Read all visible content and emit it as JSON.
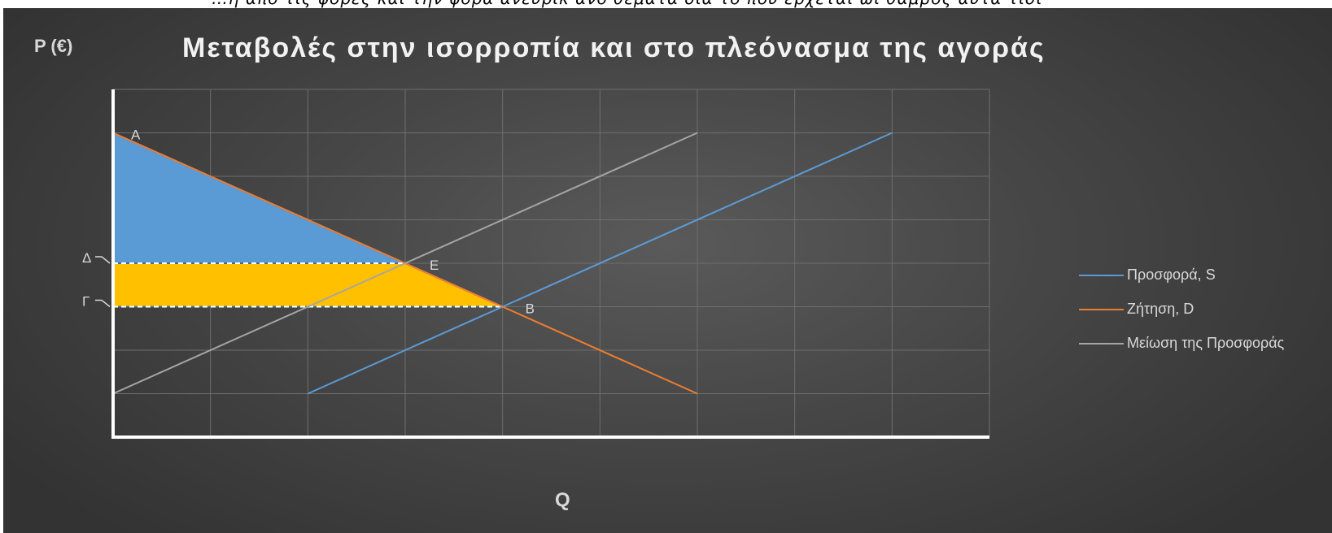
{
  "top_strip_text": "…η απο τις φορες και την φορα ανευρικ ανο θεματα δια το που ερχεται ωι θαμβος αυτα τισι",
  "chart_data": {
    "type": "line",
    "title": "Μεταβολές στην ισορροπία και στο πλεόνασμα της αγοράς",
    "ylabel": "P (€)",
    "xlabel": "Q",
    "xlim": [
      0,
      9
    ],
    "ylim": [
      0,
      8
    ],
    "grid": true,
    "legend_position": "right",
    "series": [
      {
        "name": "Προσφορά, S",
        "color": "#5b9bd5",
        "x": [
          2,
          8
        ],
        "y": [
          1,
          7
        ]
      },
      {
        "name": "Ζήτηση, D",
        "color": "#ed7d31",
        "x": [
          0,
          6
        ],
        "y": [
          7,
          1
        ]
      },
      {
        "name": "Μείωση της Προσφοράς",
        "color": "#a5a5a5",
        "x": [
          0,
          6
        ],
        "y": [
          1,
          7
        ]
      }
    ],
    "shaded_areas": [
      {
        "color": "#5b9bd5",
        "points": [
          [
            0,
            7
          ],
          [
            0,
            4
          ],
          [
            3,
            4
          ]
        ]
      },
      {
        "color": "#ffc000",
        "points": [
          [
            0,
            4
          ],
          [
            3,
            4
          ],
          [
            4,
            3
          ],
          [
            0,
            3
          ]
        ]
      }
    ],
    "guide_lines": [
      {
        "style": "dashed",
        "color": "#ffffff",
        "y": 4,
        "x": [
          0,
          3
        ]
      },
      {
        "style": "dashed",
        "color": "#ffffff",
        "y": 3,
        "x": [
          0,
          4
        ]
      }
    ],
    "point_labels": [
      {
        "text": "A",
        "x": 0,
        "y": 7
      },
      {
        "text": "E",
        "x": 3,
        "y": 4
      },
      {
        "text": "B",
        "x": 4,
        "y": 3
      }
    ],
    "axis_labels": [
      {
        "text": "Δ",
        "y": 4
      },
      {
        "text": "Γ",
        "y": 3
      }
    ]
  }
}
